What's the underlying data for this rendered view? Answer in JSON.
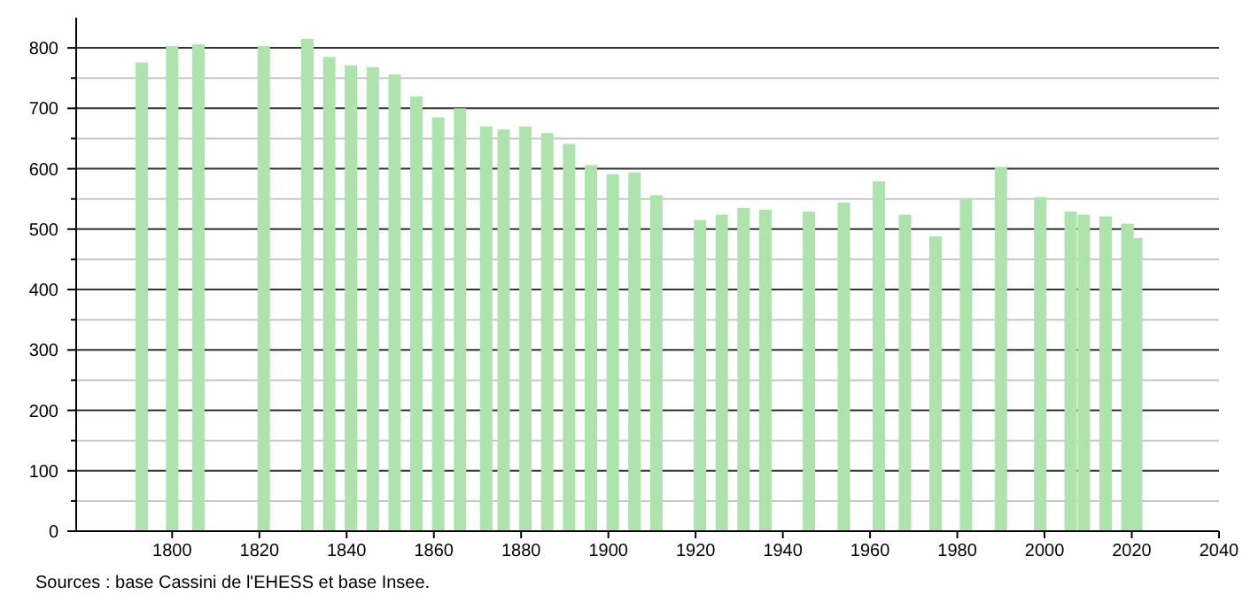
{
  "chart_data": {
    "type": "bar",
    "x": [
      1793,
      1800,
      1806,
      1821,
      1831,
      1836,
      1841,
      1846,
      1851,
      1856,
      1861,
      1866,
      1872,
      1876,
      1881,
      1886,
      1891,
      1896,
      1901,
      1906,
      1911,
      1921,
      1926,
      1931,
      1936,
      1946,
      1954,
      1962,
      1968,
      1975,
      1982,
      1990,
      1999,
      2006,
      2009,
      2014,
      2019,
      2021
    ],
    "values": [
      776,
      803,
      806,
      803,
      815,
      785,
      771,
      768,
      756,
      720,
      685,
      700,
      670,
      665,
      670,
      659,
      641,
      606,
      591,
      594,
      556,
      515,
      524,
      535,
      532,
      529,
      544,
      579,
      524,
      488,
      550,
      603,
      553,
      529,
      524,
      521,
      509,
      485
    ],
    "color": "#aee3ad",
    "xlim": [
      1778,
      2040
    ],
    "xticks": [
      1800,
      1820,
      1840,
      1860,
      1880,
      1900,
      1920,
      1940,
      1960,
      1980,
      2000,
      2020,
      2040
    ],
    "ylim": [
      0,
      850
    ],
    "yticks": [
      0,
      {
        "value": 50,
        "label": null
      },
      100,
      {
        "value": 150,
        "label": null
      },
      200,
      {
        "value": 250,
        "label": null
      },
      300,
      {
        "value": 350,
        "label": null
      },
      400,
      {
        "value": 450,
        "label": null
      },
      500,
      {
        "value": 550,
        "label": null
      },
      600,
      {
        "value": 650,
        "label": null
      },
      700,
      {
        "value": 750,
        "label": null
      },
      800
    ],
    "grid": true,
    "annotations": [
      "Sources : base Cassini de l'EHESS et base Insee."
    ]
  }
}
